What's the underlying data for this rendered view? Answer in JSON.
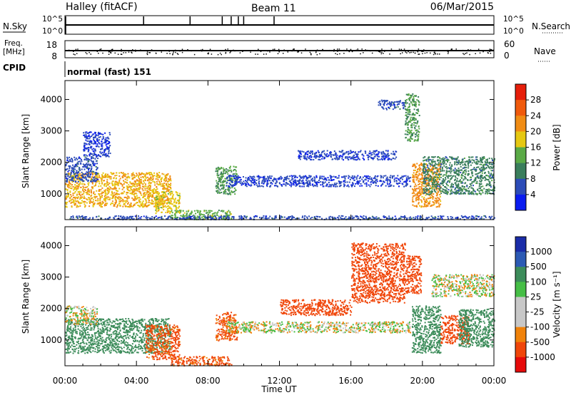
{
  "header": {
    "station": "Halley (fitACF)",
    "beam": "Beam 11",
    "date": "06/Mar/2015"
  },
  "strips": {
    "nsky": {
      "label": "N.Sky",
      "ticks": [
        "10^5",
        "10^0"
      ],
      "right_label": "N.Search",
      "right_ticks": [
        "10^5",
        "10^0"
      ]
    },
    "freq": {
      "label_top": "Freq.",
      "label_unit": "[MHz]",
      "ticks": [
        "18",
        "8"
      ],
      "right_label": "Nave",
      "right_ticks": [
        "60",
        "0"
      ]
    },
    "cpid": {
      "label": "CPID",
      "value": "normal (fast) 151"
    }
  },
  "colors": {
    "power": [
      "#0a1cf0",
      "#2c4cb8",
      "#3a7e5c",
      "#5aaa46",
      "#e6c812",
      "#f08c14",
      "#f05a0c",
      "#e61e0a"
    ],
    "velocity": [
      "#e60a0a",
      "#f0460a",
      "#f0820a",
      "#c8c8c8",
      "#c8c8c8",
      "#46be46",
      "#3c8c5a",
      "#2c5ab4",
      "#1a2ca8"
    ],
    "ground": "#c8c8c8"
  },
  "chart_data": [
    {
      "type": "heatmap",
      "name": "Power",
      "xlabel": "",
      "ylabel": "Slant Range [km]",
      "x_ticks": [
        "00:00",
        "04:00",
        "08:00",
        "12:00",
        "16:00",
        "20:00",
        "00:00"
      ],
      "x_range_hours": [
        0,
        24
      ],
      "y_ticks": [
        1000,
        2000,
        3000,
        4000
      ],
      "ylim": [
        180,
        4600
      ],
      "colorbar": {
        "label": "Power [dB]",
        "ticks": [
          "28",
          "24",
          "20",
          "16",
          "12",
          "8",
          "4"
        ],
        "range": [
          0,
          32
        ]
      },
      "echo_regions": [
        {
          "t0": 0.0,
          "t1": 5.9,
          "r0": 600,
          "r1": 1700,
          "value": 20
        },
        {
          "t0": 0.0,
          "t1": 1.8,
          "r0": 1400,
          "r1": 2200,
          "value": 6
        },
        {
          "t0": 1.0,
          "t1": 2.5,
          "r0": 2200,
          "r1": 3000,
          "value": 4
        },
        {
          "t0": 5.0,
          "t1": 6.4,
          "r0": 400,
          "r1": 1100,
          "value": 18
        },
        {
          "t0": 5.9,
          "t1": 9.3,
          "r0": 200,
          "r1": 500,
          "value": 14
        },
        {
          "t0": 8.4,
          "t1": 9.6,
          "r0": 1000,
          "r1": 1900,
          "value": 12
        },
        {
          "t0": 9.0,
          "t1": 19.3,
          "r0": 1250,
          "r1": 1600,
          "value": 5
        },
        {
          "t0": 13.0,
          "t1": 18.5,
          "r0": 2100,
          "r1": 2400,
          "value": 5
        },
        {
          "t0": 17.5,
          "t1": 19.0,
          "r0": 3700,
          "r1": 4000,
          "value": 6
        },
        {
          "t0": 19.0,
          "t1": 19.8,
          "r0": 2700,
          "r1": 4200,
          "value": 12
        },
        {
          "t0": 19.4,
          "t1": 21.0,
          "r0": 600,
          "r1": 2000,
          "value": 22
        },
        {
          "t0": 20.0,
          "t1": 24.0,
          "r0": 1000,
          "r1": 2200,
          "value": 10
        },
        {
          "t0": 0.0,
          "t1": 24.0,
          "r0": 200,
          "r1": 320,
          "value": 6
        }
      ]
    },
    {
      "type": "heatmap",
      "name": "Velocity",
      "xlabel": "Time UT",
      "ylabel": "Slant Range [km]",
      "x_ticks": [
        "00:00",
        "04:00",
        "08:00",
        "12:00",
        "16:00",
        "20:00",
        "00:00"
      ],
      "x_range_hours": [
        0,
        24
      ],
      "y_ticks": [
        1000,
        2000,
        3000,
        4000
      ],
      "ylim": [
        180,
        4600
      ],
      "colorbar": {
        "label": "Velocity [m s⁻¹]",
        "ticks": [
          "1000",
          "500",
          "100",
          "25",
          "-25",
          "-100",
          "-500",
          "-1000"
        ],
        "range": [
          -1000,
          1000
        ]
      },
      "echo_regions": [
        {
          "t0": 0.0,
          "t1": 5.9,
          "r0": 600,
          "r1": 1700,
          "value": 300
        },
        {
          "t0": 0.0,
          "t1": 1.8,
          "r0": 1500,
          "r1": 2100,
          "value": 0
        },
        {
          "t0": 4.5,
          "t1": 6.4,
          "r0": 400,
          "r1": 1500,
          "value": -150
        },
        {
          "t0": 5.9,
          "t1": 9.3,
          "r0": 200,
          "r1": 500,
          "value": -150
        },
        {
          "t0": 8.4,
          "t1": 9.6,
          "r0": 1000,
          "r1": 1900,
          "value": -150
        },
        {
          "t0": 9.0,
          "t1": 19.3,
          "r0": 1250,
          "r1": 1600,
          "value": 0
        },
        {
          "t0": 12.0,
          "t1": 16.0,
          "r0": 1800,
          "r1": 2300,
          "value": -400
        },
        {
          "t0": 16.0,
          "t1": 19.0,
          "r0": 2200,
          "r1": 4100,
          "value": -400
        },
        {
          "t0": 19.0,
          "t1": 19.9,
          "r0": 2500,
          "r1": 3700,
          "value": -400
        },
        {
          "t0": 19.4,
          "t1": 21.0,
          "r0": 600,
          "r1": 2100,
          "value": 200
        },
        {
          "t0": 21.0,
          "t1": 22.6,
          "r0": 900,
          "r1": 1800,
          "value": -300
        },
        {
          "t0": 22.0,
          "t1": 24.0,
          "r0": 800,
          "r1": 2000,
          "value": 200
        },
        {
          "t0": 20.5,
          "t1": 24.0,
          "r0": 2400,
          "r1": 3100,
          "value": 0
        }
      ]
    }
  ]
}
